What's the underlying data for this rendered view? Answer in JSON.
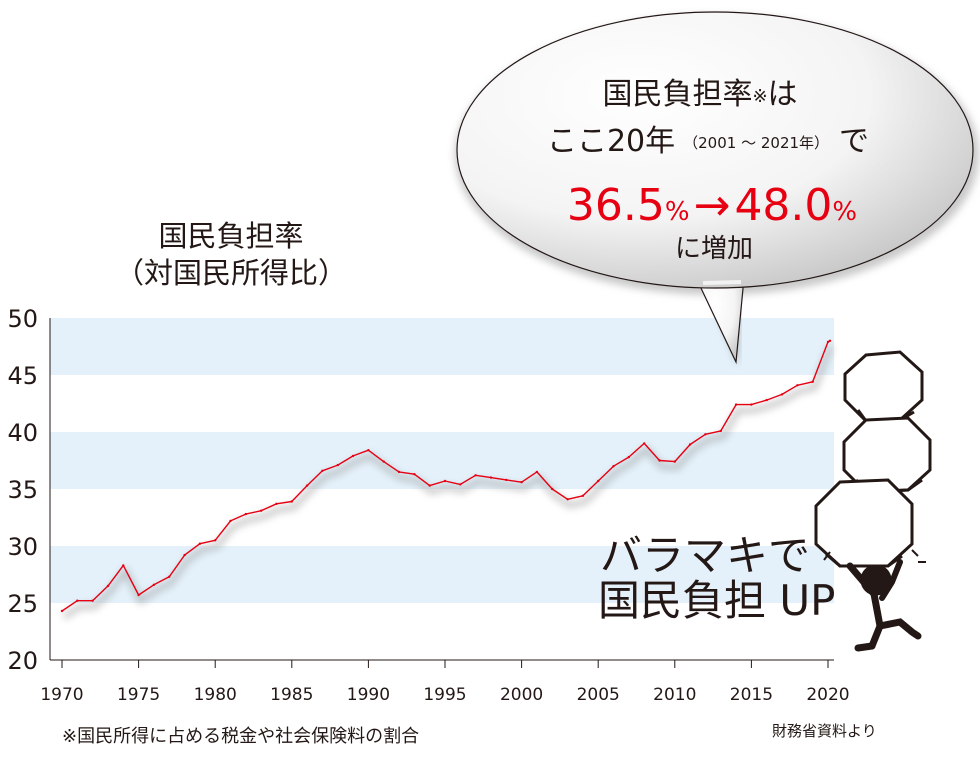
{
  "chart_data": {
    "type": "line",
    "title": "国民負担率",
    "subtitle": "（対国民所得比）",
    "ylim": [
      20,
      50
    ],
    "yticks": [
      20,
      25,
      30,
      35,
      40,
      45,
      50
    ],
    "xlim": [
      1970,
      2021
    ],
    "xticks": [
      1970,
      1975,
      1980,
      1985,
      1990,
      1995,
      2000,
      2005,
      2010,
      2015,
      2020
    ],
    "grid_bands": [
      [
        25,
        30
      ],
      [
        35,
        40
      ],
      [
        45,
        50
      ]
    ],
    "colors": {
      "line": "#e60012",
      "band": "#e4f1fa",
      "accent": "#e60012"
    },
    "series": [
      {
        "x": [
          1970,
          1971,
          1972,
          1973,
          1974,
          1975,
          1976,
          1977,
          1978,
          1979,
          1980,
          1981,
          1982,
          1983,
          1984,
          1985,
          1986,
          1987,
          1988,
          1989,
          1990,
          1991,
          1992,
          1993,
          1994,
          1995,
          1996,
          1997,
          1998,
          1999,
          2000,
          2001,
          2002,
          2003,
          2004,
          2005,
          2006,
          2007,
          2008,
          2009,
          2010,
          2011,
          2012,
          2013,
          2014,
          2015,
          2016,
          2017,
          2018,
          2019,
          2020,
          2021
        ],
        "values": [
          24.3,
          25.2,
          25.2,
          26.5,
          28.3,
          25.7,
          26.6,
          27.3,
          29.2,
          30.2,
          30.5,
          32.2,
          32.8,
          33.1,
          33.7,
          33.9,
          35.3,
          36.6,
          37.1,
          37.9,
          38.4,
          37.4,
          36.5,
          36.3,
          35.3,
          35.7,
          35.4,
          36.2,
          36.0,
          35.8,
          35.6,
          36.5,
          35.0,
          34.1,
          34.4,
          35.7,
          37.0,
          37.8,
          39.0,
          37.5,
          37.4,
          38.9,
          39.8,
          40.1,
          42.4,
          42.4,
          42.8,
          43.3,
          44.1,
          44.4,
          47.9,
          48.0
        ]
      }
    ],
    "callout": {
      "line1": "国民負担率",
      "line1_mark": "※",
      "line1_end": "は",
      "line2_start": "ここ20年",
      "line2_range": "（2001 ～ 2021年）",
      "line2_end": "で",
      "from_value": "36.5",
      "to_value": "48.0",
      "unit": "%",
      "arrow": "→",
      "line4": "に増加"
    },
    "slogan": {
      "line1": "バラマキで",
      "line2": "国民負担 UP"
    },
    "footnote": "※国民所得に占める税金や社会保険料の割合",
    "source": "財務省資料より"
  }
}
